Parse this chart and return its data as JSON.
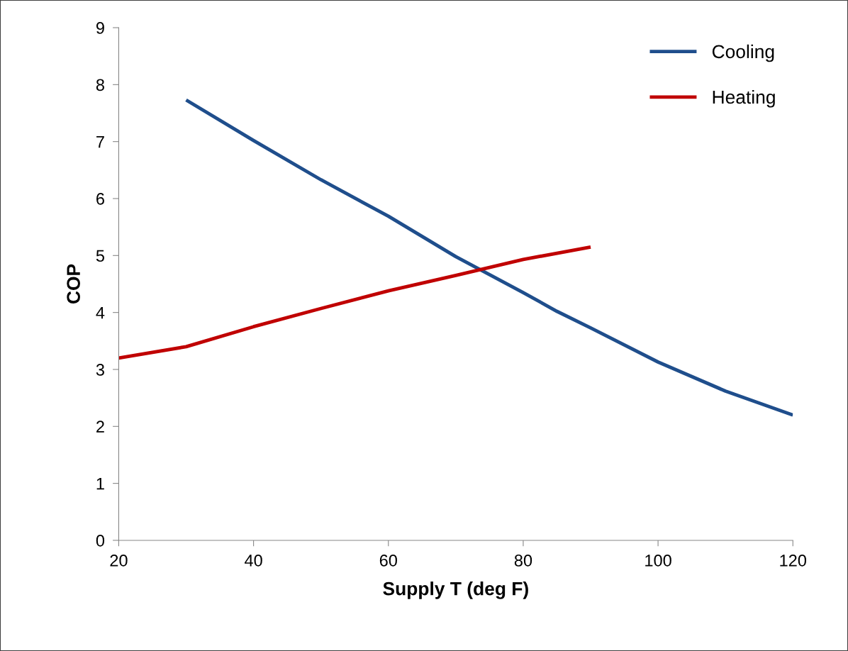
{
  "chart_data": {
    "type": "line",
    "xlabel": "Supply T (deg F)",
    "ylabel": "COP",
    "xlim": [
      20,
      120
    ],
    "xticks": [
      20,
      40,
      60,
      80,
      100,
      120
    ],
    "ylim": [
      0,
      9
    ],
    "yticks": [
      0,
      1,
      2,
      3,
      4,
      5,
      6,
      7,
      8,
      9
    ],
    "grid": false,
    "legend": "top right",
    "marker": "none",
    "line_style": "solid",
    "series": [
      {
        "name": "Cooling",
        "color": "#1f4e8c",
        "x": [
          30,
          40,
          50,
          60,
          70,
          80,
          85,
          90,
          100,
          110,
          120
        ],
        "values": [
          7.73,
          7.02,
          6.33,
          5.69,
          4.98,
          4.35,
          4.02,
          3.73,
          3.13,
          2.62,
          2.2
        ]
      },
      {
        "name": "Heating",
        "color": "#c00000",
        "x": [
          20,
          30,
          40,
          50,
          60,
          70,
          80,
          90
        ],
        "values": [
          3.2,
          3.4,
          3.75,
          4.07,
          4.38,
          4.65,
          4.93,
          5.15
        ]
      }
    ]
  }
}
